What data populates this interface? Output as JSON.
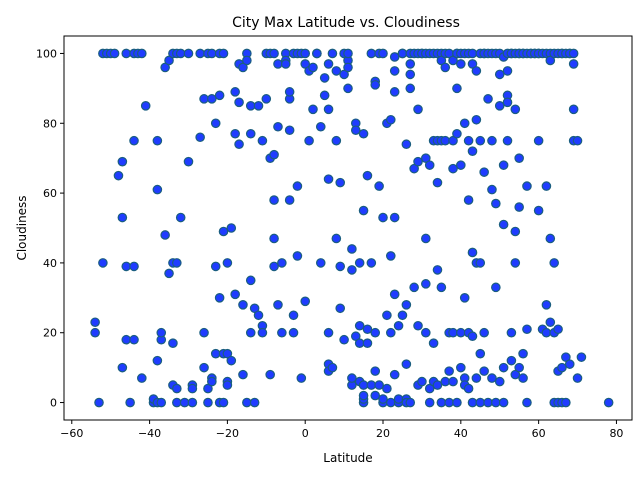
{
  "chart_data": {
    "type": "scatter",
    "title": "City Max Latitude vs. Cloudiness",
    "xlabel": "Latitude",
    "ylabel": "Cloudiness",
    "xlim": [
      -62,
      84
    ],
    "ylim": [
      -5,
      105
    ],
    "xticks": [
      -60,
      -40,
      -20,
      0,
      20,
      40,
      60,
      80
    ],
    "yticks": [
      0,
      20,
      40,
      60,
      80,
      100
    ],
    "grid": false,
    "legend": "none",
    "marker_face": "#1f3cff",
    "marker_edge": "#1a5e80",
    "points": [
      [
        -54,
        20
      ],
      [
        -54,
        23
      ],
      [
        -53,
        0
      ],
      [
        -52,
        100
      ],
      [
        -52,
        40
      ],
      [
        -51,
        100
      ],
      [
        -50,
        100
      ],
      [
        -49,
        100
      ],
      [
        -48,
        65
      ],
      [
        -47,
        53
      ],
      [
        -47,
        69
      ],
      [
        -47,
        10
      ],
      [
        -46,
        39
      ],
      [
        -46,
        100
      ],
      [
        -46,
        18
      ],
      [
        -45,
        0
      ],
      [
        -44,
        100
      ],
      [
        -44,
        75
      ],
      [
        -44,
        39
      ],
      [
        -44,
        18
      ],
      [
        -43,
        100
      ],
      [
        -42,
        100
      ],
      [
        -42,
        7
      ],
      [
        -41,
        85
      ],
      [
        -39,
        0
      ],
      [
        -39,
        1
      ],
      [
        -38,
        0
      ],
      [
        -38,
        75
      ],
      [
        -38,
        61
      ],
      [
        -38,
        12
      ],
      [
        -37,
        18
      ],
      [
        -37,
        20
      ],
      [
        -37,
        0
      ],
      [
        -36,
        48
      ],
      [
        -36,
        96
      ],
      [
        -35,
        98
      ],
      [
        -35,
        37
      ],
      [
        -34,
        100
      ],
      [
        -34,
        40
      ],
      [
        -34,
        17
      ],
      [
        -34,
        5
      ],
      [
        -33,
        0
      ],
      [
        -33,
        100
      ],
      [
        -33,
        4
      ],
      [
        -33,
        40
      ],
      [
        -32,
        100
      ],
      [
        -32,
        53
      ],
      [
        -31,
        0
      ],
      [
        -30,
        69
      ],
      [
        -30,
        100
      ],
      [
        -29,
        0
      ],
      [
        -29,
        5
      ],
      [
        -29,
        4
      ],
      [
        -27,
        76
      ],
      [
        -27,
        100
      ],
      [
        -26,
        87
      ],
      [
        -26,
        10
      ],
      [
        -26,
        20
      ],
      [
        -25,
        0
      ],
      [
        -25,
        4
      ],
      [
        -25,
        100
      ],
      [
        -24,
        100
      ],
      [
        -24,
        7
      ],
      [
        -24,
        6
      ],
      [
        -24,
        87
      ],
      [
        -23,
        80
      ],
      [
        -23,
        39
      ],
      [
        -23,
        14
      ],
      [
        -22,
        100
      ],
      [
        -22,
        88
      ],
      [
        -22,
        0
      ],
      [
        -22,
        30
      ],
      [
        -21,
        100
      ],
      [
        -21,
        49
      ],
      [
        -21,
        0
      ],
      [
        -21,
        14
      ],
      [
        -20,
        40
      ],
      [
        -20,
        6
      ],
      [
        -20,
        5
      ],
      [
        -20,
        14
      ],
      [
        -19,
        12
      ],
      [
        -19,
        50
      ],
      [
        -18,
        31
      ],
      [
        -18,
        89
      ],
      [
        -18,
        77
      ],
      [
        -17,
        97
      ],
      [
        -17,
        74
      ],
      [
        -17,
        86
      ],
      [
        -16,
        96
      ],
      [
        -16,
        28
      ],
      [
        -16,
        8
      ],
      [
        -15,
        100
      ],
      [
        -15,
        98
      ],
      [
        -15,
        0
      ],
      [
        -14,
        85
      ],
      [
        -14,
        77
      ],
      [
        -14,
        35
      ],
      [
        -14,
        20
      ],
      [
        -13,
        27
      ],
      [
        -13,
        0
      ],
      [
        -12,
        85
      ],
      [
        -12,
        25
      ],
      [
        -11,
        75
      ],
      [
        -11,
        22
      ],
      [
        -11,
        20
      ],
      [
        -10,
        100
      ],
      [
        -10,
        87
      ],
      [
        -9,
        100
      ],
      [
        -9,
        70
      ],
      [
        -9,
        8
      ],
      [
        -8,
        100
      ],
      [
        -8,
        71
      ],
      [
        -8,
        58
      ],
      [
        -8,
        47
      ],
      [
        -8,
        39
      ],
      [
        -7,
        97
      ],
      [
        -7,
        79
      ],
      [
        -7,
        28
      ],
      [
        -6,
        20
      ],
      [
        -6,
        40
      ],
      [
        -5,
        100
      ],
      [
        -5,
        98
      ],
      [
        -5,
        97
      ],
      [
        -4,
        87
      ],
      [
        -4,
        89
      ],
      [
        -4,
        78
      ],
      [
        -4,
        58
      ],
      [
        -3,
        100
      ],
      [
        -3,
        25
      ],
      [
        -3,
        20
      ],
      [
        -2,
        100
      ],
      [
        -2,
        42
      ],
      [
        -2,
        62
      ],
      [
        -1,
        100
      ],
      [
        -1,
        7
      ],
      [
        0,
        97
      ],
      [
        0,
        100
      ],
      [
        0,
        29
      ],
      [
        1,
        95
      ],
      [
        1,
        75
      ],
      [
        2,
        84
      ],
      [
        2,
        96
      ],
      [
        3,
        100
      ],
      [
        3,
        100
      ],
      [
        4,
        40
      ],
      [
        4,
        79
      ],
      [
        5,
        88
      ],
      [
        5,
        93
      ],
      [
        6,
        97
      ],
      [
        6,
        64
      ],
      [
        6,
        11
      ],
      [
        6,
        9
      ],
      [
        6,
        84
      ],
      [
        6,
        20
      ],
      [
        7,
        100
      ],
      [
        7,
        10
      ],
      [
        8,
        95
      ],
      [
        8,
        47
      ],
      [
        8,
        75
      ],
      [
        9,
        63
      ],
      [
        9,
        27
      ],
      [
        9,
        39
      ],
      [
        10,
        100
      ],
      [
        10,
        18
      ],
      [
        10,
        94
      ],
      [
        11,
        90
      ],
      [
        11,
        98
      ],
      [
        11,
        100
      ],
      [
        11,
        96
      ],
      [
        12,
        5
      ],
      [
        12,
        44
      ],
      [
        12,
        38
      ],
      [
        12,
        7
      ],
      [
        13,
        80
      ],
      [
        13,
        19
      ],
      [
        13,
        78
      ],
      [
        14,
        17
      ],
      [
        14,
        6
      ],
      [
        14,
        22
      ],
      [
        14,
        40
      ],
      [
        15,
        0
      ],
      [
        15,
        1
      ],
      [
        15,
        77
      ],
      [
        15,
        55
      ],
      [
        15,
        5
      ],
      [
        15,
        2
      ],
      [
        16,
        21
      ],
      [
        16,
        65
      ],
      [
        16,
        17
      ],
      [
        17,
        40
      ],
      [
        17,
        5
      ],
      [
        17,
        100
      ],
      [
        18,
        92
      ],
      [
        18,
        91
      ],
      [
        18,
        20
      ],
      [
        18,
        9
      ],
      [
        18,
        2
      ],
      [
        19,
        100
      ],
      [
        19,
        62
      ],
      [
        19,
        5
      ],
      [
        20,
        100
      ],
      [
        20,
        0
      ],
      [
        20,
        53
      ],
      [
        20,
        1
      ],
      [
        21,
        25
      ],
      [
        21,
        4
      ],
      [
        21,
        80
      ],
      [
        22,
        81
      ],
      [
        22,
        42
      ],
      [
        22,
        20
      ],
      [
        22,
        0
      ],
      [
        23,
        99
      ],
      [
        23,
        95
      ],
      [
        23,
        89
      ],
      [
        23,
        31
      ],
      [
        23,
        53
      ],
      [
        23,
        8
      ],
      [
        24,
        22
      ],
      [
        24,
        0
      ],
      [
        24,
        1
      ],
      [
        25,
        100
      ],
      [
        25,
        100
      ],
      [
        25,
        25
      ],
      [
        26,
        74
      ],
      [
        26,
        28
      ],
      [
        26,
        11
      ],
      [
        26,
        1
      ],
      [
        26,
        0
      ],
      [
        27,
        94
      ],
      [
        27,
        97
      ],
      [
        27,
        100
      ],
      [
        27,
        90
      ],
      [
        27,
        0
      ],
      [
        28,
        100
      ],
      [
        28,
        67
      ],
      [
        28,
        33
      ],
      [
        29,
        84
      ],
      [
        29,
        100
      ],
      [
        29,
        69
      ],
      [
        29,
        22
      ],
      [
        29,
        5
      ],
      [
        30,
        100
      ],
      [
        30,
        100
      ],
      [
        30,
        6
      ],
      [
        31,
        100
      ],
      [
        31,
        70
      ],
      [
        31,
        47
      ],
      [
        31,
        34
      ],
      [
        31,
        20
      ],
      [
        32,
        68
      ],
      [
        32,
        100
      ],
      [
        32,
        4
      ],
      [
        32,
        0
      ],
      [
        33,
        75
      ],
      [
        33,
        100
      ],
      [
        33,
        17
      ],
      [
        33,
        6
      ],
      [
        34,
        63
      ],
      [
        34,
        100
      ],
      [
        34,
        75
      ],
      [
        34,
        38
      ],
      [
        34,
        5
      ],
      [
        35,
        100
      ],
      [
        35,
        98
      ],
      [
        35,
        75
      ],
      [
        35,
        33
      ],
      [
        35,
        0
      ],
      [
        36,
        100
      ],
      [
        36,
        96
      ],
      [
        36,
        75
      ],
      [
        36,
        6
      ],
      [
        37,
        100
      ],
      [
        37,
        20
      ],
      [
        37,
        9
      ],
      [
        37,
        0
      ],
      [
        38,
        98
      ],
      [
        38,
        75
      ],
      [
        38,
        67
      ],
      [
        38,
        20
      ],
      [
        38,
        6
      ],
      [
        39,
        100
      ],
      [
        39,
        100
      ],
      [
        39,
        90
      ],
      [
        39,
        77
      ],
      [
        39,
        0
      ],
      [
        40,
        100
      ],
      [
        40,
        97
      ],
      [
        40,
        68
      ],
      [
        40,
        20
      ],
      [
        40,
        10
      ],
      [
        41,
        100
      ],
      [
        41,
        80
      ],
      [
        41,
        30
      ],
      [
        41,
        7
      ],
      [
        41,
        5
      ],
      [
        42,
        100
      ],
      [
        42,
        75
      ],
      [
        42,
        58
      ],
      [
        42,
        20
      ],
      [
        42,
        4
      ],
      [
        43,
        100
      ],
      [
        43,
        97
      ],
      [
        43,
        72
      ],
      [
        43,
        43
      ],
      [
        43,
        19
      ],
      [
        43,
        0
      ],
      [
        44,
        81
      ],
      [
        44,
        95
      ],
      [
        44,
        40
      ],
      [
        44,
        7
      ],
      [
        45,
        100
      ],
      [
        45,
        75
      ],
      [
        45,
        40
      ],
      [
        45,
        14
      ],
      [
        45,
        0
      ],
      [
        46,
        100
      ],
      [
        46,
        100
      ],
      [
        46,
        66
      ],
      [
        46,
        20
      ],
      [
        46,
        9
      ],
      [
        47,
        100
      ],
      [
        47,
        87
      ],
      [
        47,
        0
      ],
      [
        48,
        100
      ],
      [
        48,
        75
      ],
      [
        48,
        61
      ],
      [
        48,
        7
      ],
      [
        49,
        100
      ],
      [
        49,
        57
      ],
      [
        49,
        33
      ],
      [
        49,
        0
      ],
      [
        50,
        100
      ],
      [
        50,
        94
      ],
      [
        50,
        85
      ],
      [
        50,
        6
      ],
      [
        51,
        99
      ],
      [
        51,
        68
      ],
      [
        51,
        51
      ],
      [
        51,
        10
      ],
      [
        51,
        0
      ],
      [
        52,
        100
      ],
      [
        52,
        95
      ],
      [
        52,
        88
      ],
      [
        52,
        86
      ],
      [
        52,
        75
      ],
      [
        53,
        100
      ],
      [
        53,
        100
      ],
      [
        53,
        20
      ],
      [
        53,
        12
      ],
      [
        54,
        100
      ],
      [
        54,
        84
      ],
      [
        54,
        49
      ],
      [
        54,
        40
      ],
      [
        54,
        8
      ],
      [
        55,
        100
      ],
      [
        55,
        100
      ],
      [
        55,
        56
      ],
      [
        55,
        70
      ],
      [
        55,
        10
      ],
      [
        56,
        100
      ],
      [
        56,
        100
      ],
      [
        56,
        14
      ],
      [
        56,
        7
      ],
      [
        57,
        100
      ],
      [
        57,
        62
      ],
      [
        57,
        21
      ],
      [
        57,
        0
      ],
      [
        58,
        100
      ],
      [
        58,
        100
      ],
      [
        59,
        100
      ],
      [
        59,
        100
      ],
      [
        60,
        100
      ],
      [
        60,
        100
      ],
      [
        60,
        55
      ],
      [
        60,
        75
      ],
      [
        61,
        100
      ],
      [
        61,
        21
      ],
      [
        62,
        100
      ],
      [
        62,
        62
      ],
      [
        62,
        28
      ],
      [
        62,
        20
      ],
      [
        63,
        100
      ],
      [
        63,
        98
      ],
      [
        63,
        47
      ],
      [
        63,
        23
      ],
      [
        64,
        100
      ],
      [
        64,
        40
      ],
      [
        64,
        0
      ],
      [
        64,
        20
      ],
      [
        65,
        100
      ],
      [
        65,
        21
      ],
      [
        65,
        9
      ],
      [
        65,
        0
      ],
      [
        66,
        100
      ],
      [
        66,
        100
      ],
      [
        66,
        10
      ],
      [
        66,
        0
      ],
      [
        67,
        100
      ],
      [
        67,
        13
      ],
      [
        67,
        0
      ],
      [
        68,
        100
      ],
      [
        68,
        11
      ],
      [
        68,
        100
      ],
      [
        69,
        100
      ],
      [
        69,
        97
      ],
      [
        69,
        84
      ],
      [
        69,
        75
      ],
      [
        70,
        75
      ],
      [
        70,
        7
      ],
      [
        71,
        13
      ],
      [
        78,
        0
      ]
    ]
  }
}
